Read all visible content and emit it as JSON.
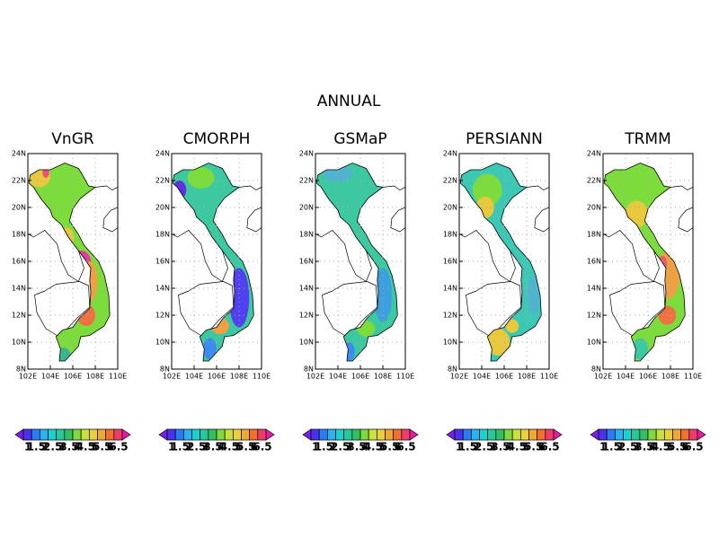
{
  "title": "ANNUAL",
  "lonlim": [
    102,
    110
  ],
  "latlim": [
    8,
    24
  ],
  "lon_ticks": [
    {
      "value": 102,
      "label": "102E"
    },
    {
      "value": 104,
      "label": "104E"
    },
    {
      "value": 106,
      "label": "106E"
    },
    {
      "value": 108,
      "label": "108E"
    },
    {
      "value": 110,
      "label": "110E"
    }
  ],
  "lat_ticks": [
    {
      "value": 8,
      "label": "8N"
    },
    {
      "value": 10,
      "label": "10N"
    },
    {
      "value": 12,
      "label": "12N"
    },
    {
      "value": 14,
      "label": "14N"
    },
    {
      "value": 16,
      "label": "16N"
    },
    {
      "value": 18,
      "label": "18N"
    },
    {
      "value": 20,
      "label": "20N"
    },
    {
      "value": 22,
      "label": "22N"
    },
    {
      "value": 24,
      "label": "24N"
    }
  ],
  "colorbar_labels": [
    "1",
    "1.5",
    "2",
    "2.5",
    "3",
    "3.5",
    "4",
    "4.5",
    "5",
    "5.5",
    "6",
    "6.5"
  ],
  "panels": [
    {
      "title": "VnGR"
    },
    {
      "title": "CMORPH"
    },
    {
      "title": "GSMaP"
    },
    {
      "title": "PERSIANN"
    },
    {
      "title": "TRMM"
    }
  ]
}
